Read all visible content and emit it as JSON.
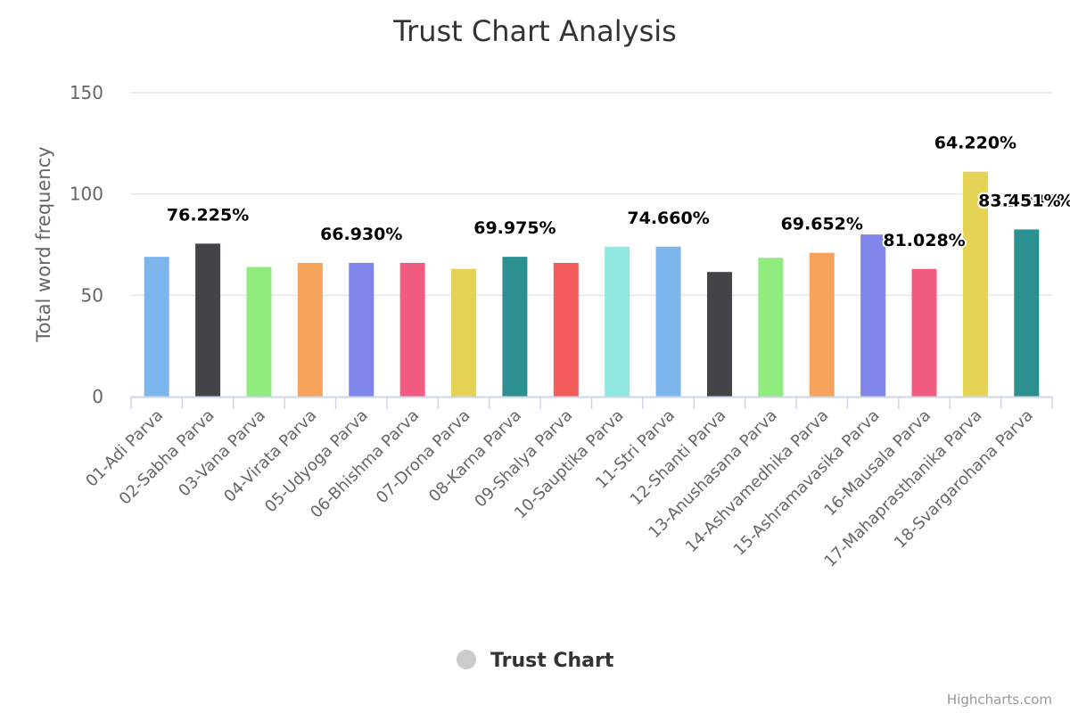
{
  "chart_data": {
    "type": "bar",
    "title": "Trust Chart Analysis",
    "ylabel": "Total word frequency",
    "xlabel": "",
    "ylim": [
      0,
      150
    ],
    "yticks": [
      0,
      50,
      100,
      150
    ],
    "grid": true,
    "legend_position": "bottom-center",
    "series": [
      {
        "name": "Trust Chart",
        "legend_color": "#cccccc",
        "values": [
          69,
          75.5,
          64,
          66,
          66,
          66,
          63,
          69,
          66,
          74,
          74,
          61.5,
          68.5,
          71,
          80,
          63,
          111,
          82.5
        ]
      }
    ],
    "categories": [
      "01-Adi Parva",
      "02-Sabha Parva",
      "03-Vana Parva",
      "04-Virata Parva",
      "05-Udyoga Parva",
      "06-Bhishma Parva",
      "07-Drona Parva",
      "08-Karna Parva",
      "09-Shalya Parva",
      "10-Sauptika Parva",
      "11-Stri Parva",
      "12-Shanti Parva",
      "13-Anushasana Parva",
      "14-Ashvamedhika Parva",
      "15-Ashramavasika Parva",
      "16-Mausala Parva",
      "17-Mahaprasthanika Parva",
      "18-Svargarohana Parva"
    ],
    "data_labels": [
      {
        "index": 1,
        "text": "76.225%"
      },
      {
        "index": 4,
        "text": "66.930%"
      },
      {
        "index": 7,
        "text": "69.975%"
      },
      {
        "index": 10,
        "text": "74.660%"
      },
      {
        "index": 13,
        "text": "69.652%"
      },
      {
        "index": 15,
        "text": "81.028%"
      },
      {
        "index": 16,
        "text": "64.220%"
      },
      {
        "index": 17,
        "text": "112.081%"
      },
      {
        "index": 18,
        "text": "83.451%"
      }
    ],
    "colors": [
      "#7cb5ec",
      "#434348",
      "#90ed7d",
      "#f7a35c",
      "#8085e9",
      "#f15c80",
      "#e4d354",
      "#2b908f",
      "#f45b5b",
      "#91e8e1"
    ]
  },
  "credits": "Highcharts.com"
}
